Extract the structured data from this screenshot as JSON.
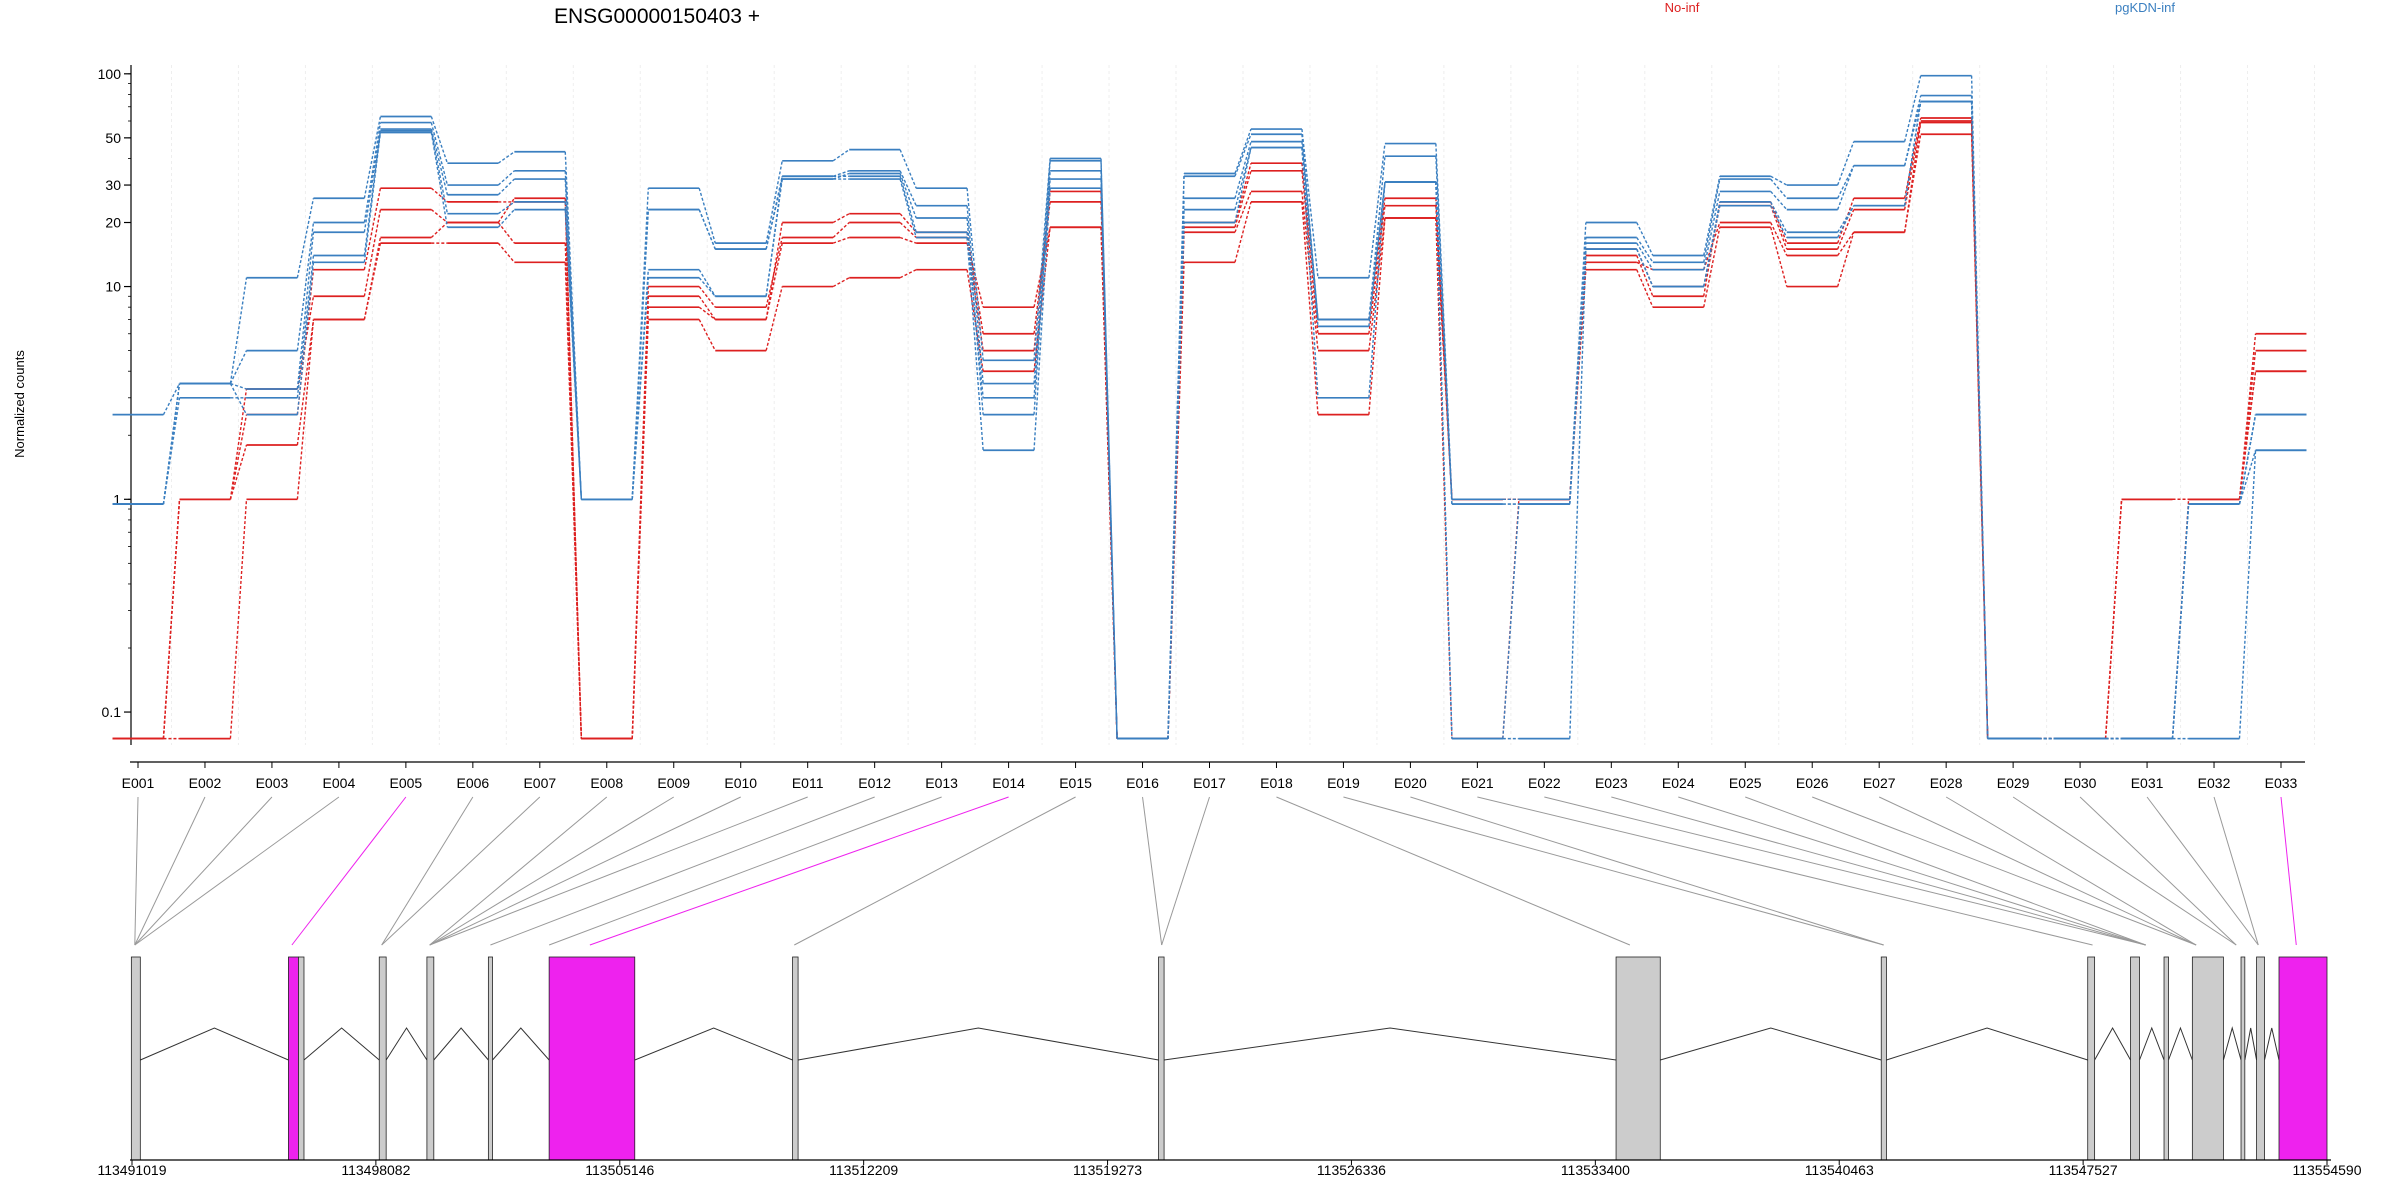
{
  "chart_data": {
    "type": "line",
    "title": "ENSG00000150403 +",
    "ylabel": "Normalized counts",
    "yscale": "log",
    "ylim": [
      0.07,
      110
    ],
    "yticks": [
      0.1,
      1,
      10,
      20,
      30,
      50,
      100
    ],
    "ytick_labels": [
      "0.1",
      "1",
      "10",
      "20",
      "30",
      "50",
      "100"
    ],
    "zero_floor": 0.075,
    "legend_position": "top",
    "colors": {
      "No-inf": "#dd2020",
      "pgKDN-inf": "#3a7fc0",
      "highlight": "#ee22ee",
      "exon_fill": "#cccccc"
    },
    "categories": [
      "E001",
      "E002",
      "E003",
      "E004",
      "E005",
      "E006",
      "E007",
      "E008",
      "E009",
      "E010",
      "E011",
      "E012",
      "E013",
      "E014",
      "E015",
      "E016",
      "E017",
      "E018",
      "E019",
      "E020",
      "E021",
      "E022",
      "E023",
      "E024",
      "E025",
      "E026",
      "E027",
      "E028",
      "E029",
      "E030",
      "E031",
      "E032",
      "E033"
    ],
    "series": [
      {
        "name": "No-inf",
        "values": [
          0,
          1,
          3.3,
          9,
          23,
          20,
          26,
          0,
          9,
          7,
          20,
          22,
          18,
          6,
          25,
          0,
          20,
          38,
          7,
          26,
          1,
          1,
          14,
          9,
          25,
          16,
          26,
          62,
          0,
          0,
          1,
          1,
          5
        ]
      },
      {
        "name": "No-inf",
        "values": [
          0,
          1,
          2.5,
          12,
          29,
          25,
          25,
          0,
          10,
          8,
          17,
          20,
          17,
          5,
          28,
          0,
          19,
          35,
          6,
          24,
          1,
          1,
          15,
          10,
          24,
          15,
          23,
          60,
          0,
          0,
          1,
          1,
          6
        ]
      },
      {
        "name": "No-inf",
        "values": [
          0,
          1,
          1.8,
          7,
          17,
          20,
          16,
          0,
          8,
          7,
          16,
          17,
          16,
          8,
          19,
          0,
          18,
          28,
          5,
          21,
          1,
          1,
          13,
          12,
          20,
          14,
          18,
          59,
          0,
          0,
          1,
          1,
          4
        ]
      },
      {
        "name": "No-inf",
        "values": [
          0,
          0,
          1,
          7,
          16,
          16,
          13,
          0,
          7,
          5,
          10,
          11,
          12,
          4,
          19,
          0,
          13,
          25,
          2.5,
          21,
          0,
          1,
          12,
          8,
          19,
          10,
          18,
          52,
          0,
          0,
          0,
          1,
          4
        ]
      },
      {
        "name": "pgKDN-inf",
        "values": [
          2.5,
          3.5,
          11,
          26,
          63,
          38,
          43,
          1,
          29,
          16,
          39,
          44,
          29,
          4.5,
          40,
          0,
          34,
          55,
          11,
          47,
          1,
          1,
          20,
          14,
          33,
          30,
          48,
          98,
          0,
          0,
          0,
          0.95,
          2.5
        ]
      },
      {
        "name": "pgKDN-inf",
        "values": [
          0.95,
          3.5,
          5,
          20,
          59,
          30,
          35,
          1,
          23,
          15,
          33,
          35,
          24,
          3.5,
          39,
          0,
          33,
          52,
          7,
          41,
          0.95,
          0.95,
          17,
          13,
          32,
          26,
          37,
          79,
          0,
          0,
          0,
          0.95,
          2.5
        ]
      },
      {
        "name": "pgKDN-inf",
        "values": [
          0.95,
          3.5,
          3.3,
          18,
          55,
          27,
          32,
          1,
          23,
          15,
          32,
          34,
          21,
          2.5,
          35,
          0,
          26,
          48,
          7,
          31,
          0.95,
          0.95,
          16,
          12,
          28,
          23,
          37,
          74,
          0,
          0,
          0,
          0.95,
          2.5
        ]
      },
      {
        "name": "pgKDN-inf",
        "values": [
          0.95,
          3,
          3,
          14,
          54,
          22,
          25,
          1,
          12,
          9,
          33,
          33,
          18,
          3,
          32,
          0,
          23,
          45,
          3,
          31,
          0,
          0.95,
          15,
          10,
          25,
          18,
          24,
          74,
          0,
          0,
          0,
          0.95,
          1.7
        ]
      },
      {
        "name": "pgKDN-inf",
        "values": [
          0.95,
          3.5,
          2.5,
          13,
          53,
          19,
          23,
          1,
          11,
          9,
          32,
          32,
          17,
          1.7,
          29,
          0,
          20,
          45,
          6.5,
          31,
          0,
          0,
          15,
          10,
          24,
          17,
          24,
          74,
          0,
          0,
          0,
          0,
          1.7
        ]
      }
    ],
    "gene_model": {
      "coord_ticks": [
        "113491019",
        "113498082",
        "113505146",
        "113512209",
        "113519273",
        "113526336",
        "113533400",
        "113540463",
        "113547527",
        "113554590"
      ],
      "coord_range": [
        113491019,
        113554590
      ],
      "exon_segments": [
        {
          "from": 113491000,
          "to": 113491260,
          "hl": false
        },
        {
          "from": 113495550,
          "to": 113495840,
          "hl": true
        },
        {
          "from": 113495840,
          "to": 113496000,
          "hl": false
        },
        {
          "from": 113498180,
          "to": 113498380,
          "hl": false
        },
        {
          "from": 113499560,
          "to": 113499760,
          "hl": false
        },
        {
          "from": 113501340,
          "to": 113501460,
          "hl": false
        },
        {
          "from": 113503100,
          "to": 113505580,
          "hl": true
        },
        {
          "from": 113510150,
          "to": 113510310,
          "hl": false
        },
        {
          "from": 113520750,
          "to": 113520910,
          "hl": false
        },
        {
          "from": 113534000,
          "to": 113535280,
          "hl": false
        },
        {
          "from": 113541680,
          "to": 113541830,
          "hl": false
        },
        {
          "from": 113547660,
          "to": 113547860,
          "hl": false
        },
        {
          "from": 113548900,
          "to": 113549160,
          "hl": false
        },
        {
          "from": 113549870,
          "to": 113550000,
          "hl": false
        },
        {
          "from": 113550690,
          "to": 113551590,
          "hl": false
        },
        {
          "from": 113552100,
          "to": 113552210,
          "hl": false
        },
        {
          "from": 113552550,
          "to": 113552780,
          "hl": false
        },
        {
          "from": 113553200,
          "to": 113554590,
          "hl": true
        }
      ],
      "exon_positions": [
        113491100,
        113491100,
        113491100,
        113491100,
        113495650,
        113498250,
        113498250,
        113499640,
        113499640,
        113499640,
        113499640,
        113501400,
        113503100,
        113504280,
        113510200,
        113520840,
        113520840,
        113534400,
        113541750,
        113541750,
        113547800,
        113549340,
        113549340,
        113549340,
        113549340,
        113550800,
        113550800,
        113550800,
        113551960,
        113551960,
        113552600,
        113552600,
        113553700
      ],
      "highlight_exons": [
        "E005",
        "E014",
        "E033"
      ],
      "introns": [
        [
          113491260,
          113495550
        ],
        [
          113496000,
          113498180
        ],
        [
          113498380,
          113499560
        ],
        [
          113499760,
          113501340
        ],
        [
          113501460,
          113503100
        ],
        [
          113505580,
          113510150
        ],
        [
          113510310,
          113520750
        ],
        [
          113520910,
          113534000
        ],
        [
          113535280,
          113541680
        ],
        [
          113541830,
          113547660
        ],
        [
          113547860,
          113548900
        ],
        [
          113549160,
          113549870
        ],
        [
          113550000,
          113550690
        ],
        [
          113551590,
          113552100
        ],
        [
          113552210,
          113552550
        ],
        [
          113552780,
          113553200
        ]
      ]
    }
  },
  "legend": [
    {
      "label": "No-inf",
      "color": "#dd2020"
    },
    {
      "label": "pgKDN-inf",
      "color": "#3a7fc0"
    }
  ]
}
